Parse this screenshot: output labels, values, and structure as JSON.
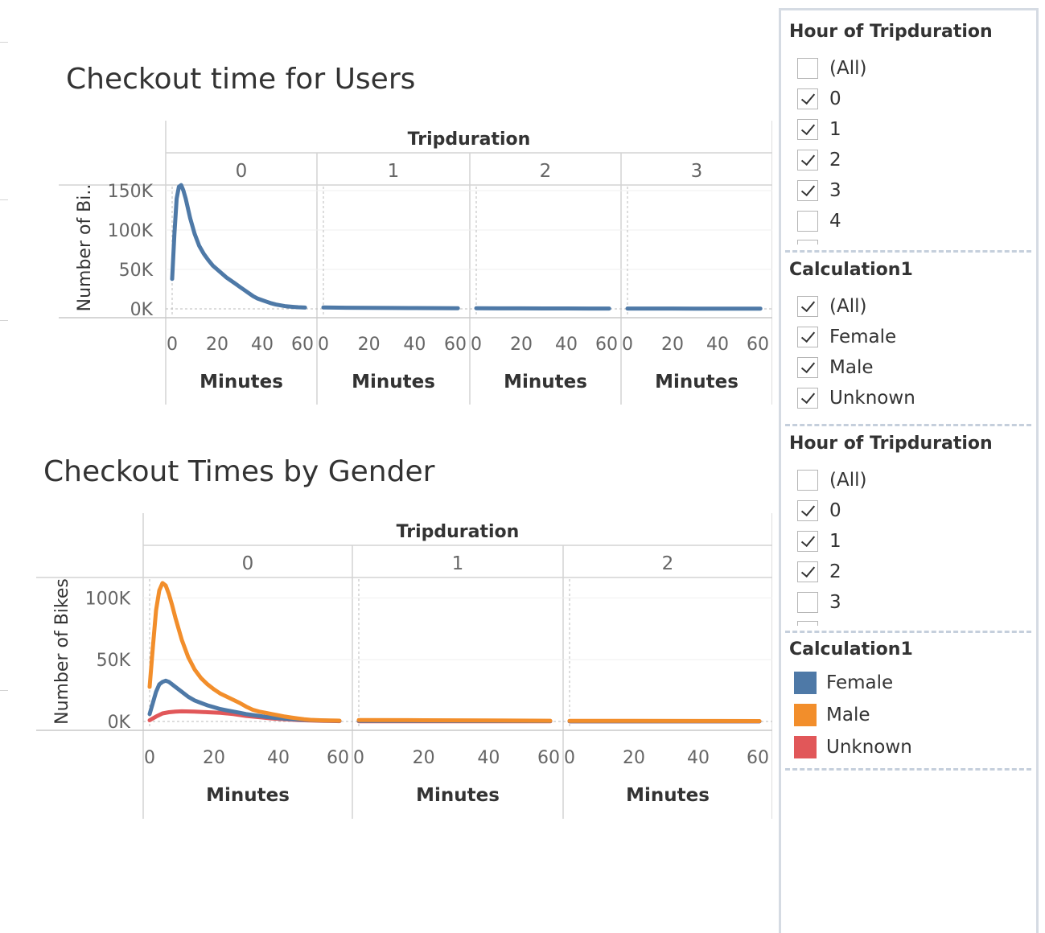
{
  "dashboard": {
    "chart1_title": "Checkout time for Users",
    "chart2_title": "Checkout Times by Gender"
  },
  "chart_data": [
    {
      "type": "line",
      "title": "Checkout time for Users",
      "column_header": "Tripduration",
      "panels": [
        "0",
        "1",
        "2",
        "3"
      ],
      "xlabel": "Minutes",
      "ylabel": "Number of Bi..",
      "xlim": [
        0,
        60
      ],
      "ylim": [
        0,
        150000
      ],
      "x_ticks": [
        "0",
        "20",
        "40",
        "60"
      ],
      "y_ticks": [
        {
          "value": 0,
          "label": "0K"
        },
        {
          "value": 50000,
          "label": "50K"
        },
        {
          "value": 100000,
          "label": "100K"
        },
        {
          "value": 150000,
          "label": "150K"
        }
      ],
      "grid": true,
      "series": [
        {
          "color": "#4e79a7",
          "panels": {
            "0": {
              "x": [
                0,
                1,
                2,
                3,
                4,
                5,
                6,
                8,
                10,
                12,
                14,
                16,
                18,
                20,
                22,
                24,
                26,
                28,
                30,
                32,
                34,
                36,
                38,
                40,
                42,
                44,
                46,
                48,
                50,
                52,
                54,
                56,
                58,
                59
              ],
              "y": [
                38000,
                95000,
                140000,
                155000,
                157000,
                150000,
                140000,
                115000,
                95000,
                80000,
                70000,
                62000,
                55000,
                50000,
                45000,
                40000,
                36000,
                32000,
                28000,
                24000,
                20000,
                16000,
                13000,
                11000,
                9000,
                7000,
                5500,
                4500,
                3500,
                3000,
                2500,
                2000,
                1800,
                1600
              ]
            },
            "1": {
              "x": [
                0,
                10,
                20,
                30,
                40,
                50,
                59
              ],
              "y": [
                1800,
                1400,
                1200,
                1100,
                1000,
                900,
                800
              ]
            },
            "2": {
              "x": [
                0,
                10,
                20,
                30,
                40,
                50,
                59
              ],
              "y": [
                700,
                650,
                600,
                550,
                500,
                450,
                400
              ]
            },
            "3": {
              "x": [
                0,
                10,
                20,
                30,
                40,
                50,
                59
              ],
              "y": [
                400,
                380,
                360,
                340,
                320,
                300,
                280
              ]
            }
          }
        }
      ]
    },
    {
      "type": "line",
      "title": "Checkout Times by Gender",
      "column_header": "Tripduration",
      "panels": [
        "0",
        "1",
        "2"
      ],
      "xlabel": "Minutes",
      "ylabel": "Number of Bikes",
      "xlim": [
        0,
        60
      ],
      "ylim": [
        0,
        110000
      ],
      "x_ticks": [
        "0",
        "20",
        "40",
        "60"
      ],
      "y_ticks": [
        {
          "value": 0,
          "label": "0K"
        },
        {
          "value": 50000,
          "label": "50K"
        },
        {
          "value": 100000,
          "label": "100K"
        }
      ],
      "grid": true,
      "series": [
        {
          "name": "Unknown",
          "color": "#e15759",
          "panels": {
            "0": {
              "x": [
                0,
                2,
                4,
                6,
                8,
                10,
                14,
                18,
                22,
                26,
                30,
                34,
                38,
                42,
                46,
                50,
                54,
                58,
                59
              ],
              "y": [
                1000,
                4000,
                6500,
                7500,
                8000,
                8200,
                8000,
                7500,
                7000,
                6000,
                4500,
                3500,
                2500,
                1800,
                1200,
                800,
                500,
                300,
                250
              ]
            },
            "1": {
              "x": [
                0,
                20,
                40,
                59
              ],
              "y": [
                200,
                180,
                150,
                120
              ]
            },
            "2": {
              "x": [
                0,
                20,
                40,
                59
              ],
              "y": [
                80,
                70,
                60,
                50
              ]
            }
          }
        },
        {
          "name": "Female",
          "color": "#4e79a7",
          "panels": {
            "0": {
              "x": [
                0,
                1,
                2,
                3,
                4,
                5,
                6,
                7,
                8,
                10,
                12,
                14,
                16,
                18,
                20,
                22,
                24,
                26,
                28,
                30,
                32,
                34,
                36,
                38,
                40,
                44,
                48,
                52,
                56,
                59
              ],
              "y": [
                6000,
                15000,
                24000,
                30000,
                32000,
                33000,
                32000,
                30000,
                28000,
                24000,
                20000,
                17000,
                15000,
                13000,
                11500,
                10000,
                9000,
                8000,
                7000,
                6000,
                5200,
                4500,
                3800,
                3200,
                2700,
                1900,
                1300,
                900,
                650,
                550
              ]
            },
            "1": {
              "x": [
                0,
                20,
                40,
                59
              ],
              "y": [
                500,
                450,
                380,
                300
              ]
            },
            "2": {
              "x": [
                0,
                20,
                40,
                59
              ],
              "y": [
                200,
                180,
                150,
                120
              ]
            }
          }
        },
        {
          "name": "Male",
          "color": "#f28e2b",
          "panels": {
            "0": {
              "x": [
                0,
                1,
                2,
                3,
                4,
                5,
                6,
                7,
                8,
                9,
                10,
                12,
                14,
                16,
                18,
                20,
                22,
                24,
                26,
                28,
                30,
                32,
                34,
                36,
                38,
                40,
                42,
                44,
                46,
                48,
                50,
                54,
                58,
                59
              ],
              "y": [
                28000,
                60000,
                90000,
                106000,
                112000,
                110000,
                103000,
                94000,
                84000,
                75000,
                66000,
                52000,
                42000,
                35000,
                30000,
                26000,
                22500,
                20000,
                17500,
                15000,
                12000,
                9500,
                8000,
                7000,
                6000,
                5000,
                4000,
                3200,
                2500,
                1800,
                1300,
                900,
                700,
                650
              ]
            },
            "1": {
              "x": [
                0,
                20,
                40,
                59
              ],
              "y": [
                1200,
                1000,
                800,
                600
              ]
            },
            "2": {
              "x": [
                0,
                20,
                40,
                59
              ],
              "y": [
                500,
                450,
                380,
                300
              ]
            }
          }
        }
      ]
    }
  ],
  "filters": {
    "hour_filter_1": {
      "title": "Hour of Tripduration",
      "items": [
        {
          "label": "(All)",
          "checked": false
        },
        {
          "label": "0",
          "checked": true
        },
        {
          "label": "1",
          "checked": true
        },
        {
          "label": "2",
          "checked": true
        },
        {
          "label": "3",
          "checked": true
        },
        {
          "label": "4",
          "checked": false
        }
      ]
    },
    "gender_filter": {
      "title": "Calculation1",
      "items": [
        {
          "label": "(All)",
          "checked": true
        },
        {
          "label": "Female",
          "checked": true
        },
        {
          "label": "Male",
          "checked": true
        },
        {
          "label": "Unknown",
          "checked": true
        }
      ]
    },
    "hour_filter_2": {
      "title": "Hour of Tripduration",
      "items": [
        {
          "label": "(All)",
          "checked": false
        },
        {
          "label": "0",
          "checked": true
        },
        {
          "label": "1",
          "checked": true
        },
        {
          "label": "2",
          "checked": true
        },
        {
          "label": "3",
          "checked": false
        }
      ]
    }
  },
  "legend": {
    "title": "Calculation1",
    "items": [
      {
        "label": "Female",
        "color": "#4e79a7"
      },
      {
        "label": "Male",
        "color": "#f28e2b"
      },
      {
        "label": "Unknown",
        "color": "#e15759"
      }
    ]
  }
}
